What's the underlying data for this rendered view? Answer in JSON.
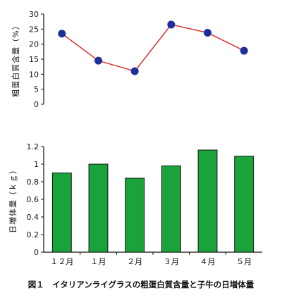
{
  "chart_data": [
    {
      "type": "line",
      "ylabel": "粗蛋白質含量（%）",
      "ylim": [
        0,
        30
      ],
      "yticks": [
        "0",
        "5",
        "10",
        "15",
        "20",
        "25",
        "30"
      ],
      "categories": [
        "１２月",
        "１月",
        "２月",
        "３月",
        "４月",
        "５月"
      ],
      "values": [
        23.5,
        14.5,
        11,
        26.5,
        23.8,
        17.8
      ],
      "line_color": "#e02424",
      "marker_color": "#1f2f9a",
      "grid": false
    },
    {
      "type": "bar",
      "ylabel": "日増体量（ｋｇ）",
      "ylim": [
        0,
        1.2
      ],
      "yticks": [
        "0",
        "0.2",
        "0.4",
        "0.6",
        "0.8",
        "1",
        "1.2"
      ],
      "categories": [
        "１２月",
        "１月",
        "２月",
        "３月",
        "４月",
        "５月"
      ],
      "values": [
        0.9,
        1.0,
        0.84,
        0.98,
        1.16,
        1.09
      ],
      "bar_color": "#1aa33a",
      "grid": false
    }
  ],
  "caption": "図１　イタリアンライグラスの粗蛋白質含量と子牛の日増体量"
}
